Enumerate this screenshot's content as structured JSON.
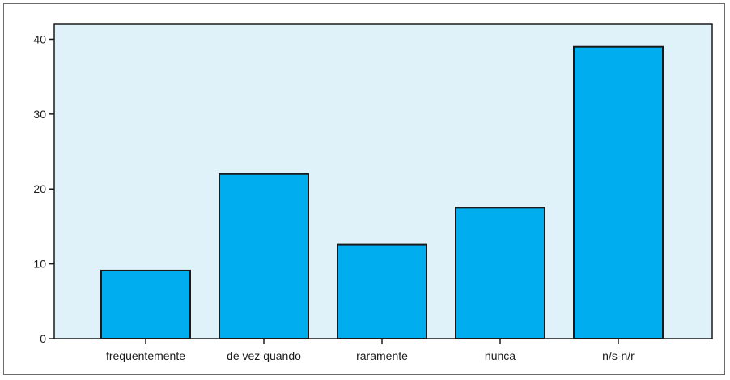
{
  "chart_data": {
    "type": "bar",
    "categories": [
      "frequentemente",
      "de vez quando",
      "raramente",
      "nunca",
      "n/s-n/r"
    ],
    "values": [
      9.1,
      22,
      12.6,
      17.5,
      39
    ],
    "ylim": [
      0,
      42
    ],
    "yticks": [
      0,
      10,
      20,
      30,
      40
    ],
    "grid": false,
    "legend": "none",
    "colors": {
      "plot_background": "#dff2fa",
      "bar_fill": "#00aeef",
      "bar_stroke": "#1a1a1a",
      "axis": "#1a1a1a"
    }
  }
}
